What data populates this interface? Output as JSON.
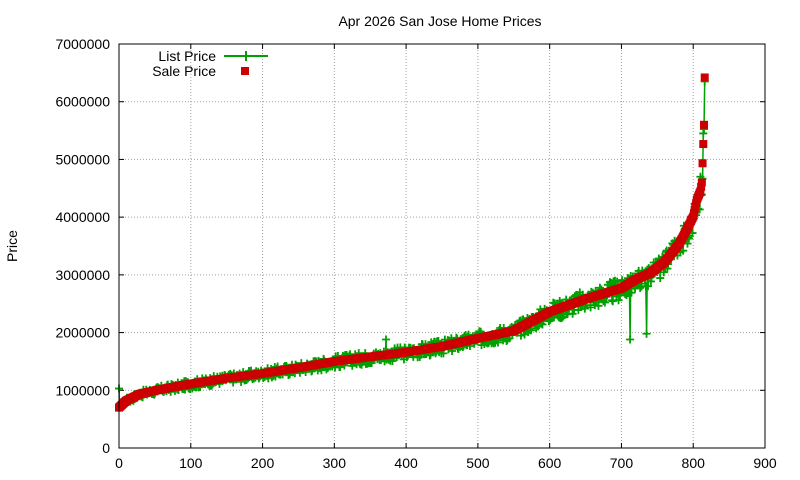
{
  "chart_data": {
    "type": "line",
    "title": "Apr 2026 San Jose Home Prices",
    "xlabel": "",
    "ylabel": "Price",
    "xlim": [
      0,
      900
    ],
    "ylim": [
      0,
      7000000
    ],
    "x_ticks": [
      0,
      100,
      200,
      300,
      400,
      500,
      600,
      700,
      800,
      900
    ],
    "y_ticks": [
      0,
      1000000,
      2000000,
      3000000,
      4000000,
      5000000,
      6000000,
      7000000
    ],
    "grid": true,
    "legend_position": "top-left",
    "n_points": 817,
    "series": [
      {
        "name": "List Price",
        "style": "line with plus markers",
        "color": "#00a000",
        "x": [
          0,
          2,
          5,
          10,
          30,
          60,
          80,
          100,
          150,
          200,
          250,
          300,
          372,
          400,
          450,
          490,
          500,
          550,
          600,
          650,
          700,
          712,
          720,
          735,
          740,
          750,
          760,
          780,
          800,
          805,
          810,
          814,
          816
        ],
        "values": [
          1030000,
          700000,
          740000,
          800000,
          930000,
          1000000,
          1050000,
          1100000,
          1200000,
          1300000,
          1400000,
          1500000,
          1880000,
          1650000,
          1780000,
          1900000,
          1950000,
          2050000,
          2350000,
          2600000,
          2800000,
          1880000,
          2850000,
          1980000,
          2950000,
          3050000,
          3200000,
          3500000,
          4000000,
          4200000,
          4700000,
          5450000,
          6350000
        ]
      },
      {
        "name": "Sale Price",
        "style": "red square markers",
        "color": "#cc0000",
        "x": [
          0,
          5,
          10,
          30,
          60,
          100,
          150,
          200,
          250,
          300,
          350,
          400,
          450,
          500,
          550,
          600,
          650,
          700,
          720,
          740,
          760,
          780,
          790,
          800,
          805,
          810,
          812,
          815,
          816
        ],
        "values": [
          700000,
          760000,
          820000,
          940000,
          1020000,
          1110000,
          1210000,
          1290000,
          1390000,
          1500000,
          1580000,
          1660000,
          1760000,
          1900000,
          2030000,
          2360000,
          2580000,
          2770000,
          2920000,
          3030000,
          3220000,
          3530000,
          3760000,
          4010000,
          4300000,
          4450000,
          4600000,
          5600000,
          6420000
        ]
      }
    ]
  }
}
